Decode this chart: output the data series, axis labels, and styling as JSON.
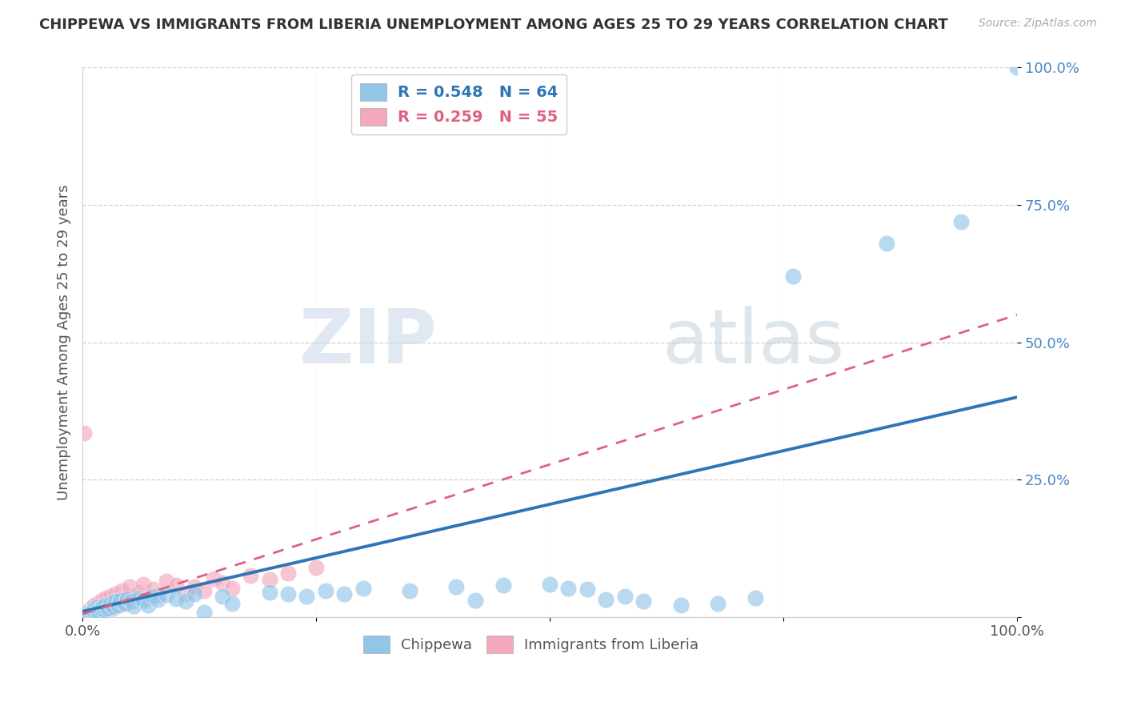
{
  "title": "CHIPPEWA VS IMMIGRANTS FROM LIBERIA UNEMPLOYMENT AMONG AGES 25 TO 29 YEARS CORRELATION CHART",
  "source": "Source: ZipAtlas.com",
  "ylabel": "Unemployment Among Ages 25 to 29 years",
  "xlim": [
    0.0,
    1.0
  ],
  "ylim": [
    0.0,
    1.0
  ],
  "xticks": [
    0.0,
    0.25,
    0.5,
    0.75,
    1.0
  ],
  "xticklabels": [
    "0.0%",
    "",
    "",
    "",
    "100.0%"
  ],
  "yticks": [
    0.0,
    0.25,
    0.5,
    0.75,
    1.0
  ],
  "yticklabels": [
    "",
    "25.0%",
    "50.0%",
    "75.0%",
    "100.0%"
  ],
  "legend1_label": "R = 0.548   N = 64",
  "legend2_label": "R = 0.259   N = 55",
  "chippewa_color": "#92C5E8",
  "liberia_color": "#F4A8BB",
  "chippewa_line_color": "#2E75B6",
  "liberia_line_color": "#E06080",
  "watermark_zip": "ZIP",
  "watermark_atlas": "atlas",
  "chippewa_line": [
    [
      0.0,
      0.01
    ],
    [
      1.0,
      0.4
    ]
  ],
  "liberia_line": [
    [
      0.0,
      0.005
    ],
    [
      1.0,
      0.55
    ]
  ],
  "chippewa_points": [
    [
      0.003,
      0.003
    ],
    [
      0.005,
      0.005
    ],
    [
      0.006,
      0.008
    ],
    [
      0.007,
      0.003
    ],
    [
      0.008,
      0.006
    ],
    [
      0.009,
      0.01
    ],
    [
      0.01,
      0.005
    ],
    [
      0.011,
      0.012
    ],
    [
      0.012,
      0.008
    ],
    [
      0.013,
      0.015
    ],
    [
      0.014,
      0.007
    ],
    [
      0.015,
      0.01
    ],
    [
      0.016,
      0.018
    ],
    [
      0.017,
      0.012
    ],
    [
      0.018,
      0.006
    ],
    [
      0.02,
      0.015
    ],
    [
      0.022,
      0.02
    ],
    [
      0.024,
      0.012
    ],
    [
      0.025,
      0.022
    ],
    [
      0.027,
      0.016
    ],
    [
      0.03,
      0.025
    ],
    [
      0.033,
      0.018
    ],
    [
      0.035,
      0.028
    ],
    [
      0.038,
      0.022
    ],
    [
      0.04,
      0.03
    ],
    [
      0.045,
      0.025
    ],
    [
      0.048,
      0.033
    ],
    [
      0.052,
      0.028
    ],
    [
      0.055,
      0.02
    ],
    [
      0.06,
      0.035
    ],
    [
      0.065,
      0.03
    ],
    [
      0.07,
      0.022
    ],
    [
      0.075,
      0.038
    ],
    [
      0.08,
      0.032
    ],
    [
      0.09,
      0.04
    ],
    [
      0.1,
      0.033
    ],
    [
      0.11,
      0.028
    ],
    [
      0.12,
      0.042
    ],
    [
      0.13,
      0.008
    ],
    [
      0.15,
      0.038
    ],
    [
      0.16,
      0.025
    ],
    [
      0.2,
      0.045
    ],
    [
      0.22,
      0.042
    ],
    [
      0.24,
      0.038
    ],
    [
      0.26,
      0.048
    ],
    [
      0.28,
      0.042
    ],
    [
      0.3,
      0.052
    ],
    [
      0.35,
      0.048
    ],
    [
      0.4,
      0.055
    ],
    [
      0.42,
      0.03
    ],
    [
      0.45,
      0.058
    ],
    [
      0.5,
      0.06
    ],
    [
      0.52,
      0.052
    ],
    [
      0.54,
      0.05
    ],
    [
      0.56,
      0.032
    ],
    [
      0.58,
      0.038
    ],
    [
      0.6,
      0.028
    ],
    [
      0.64,
      0.022
    ],
    [
      0.68,
      0.025
    ],
    [
      0.72,
      0.035
    ],
    [
      0.76,
      0.62
    ],
    [
      0.86,
      0.68
    ],
    [
      0.94,
      0.72
    ],
    [
      1.0,
      1.0
    ]
  ],
  "liberia_points": [
    [
      0.002,
      0.335
    ],
    [
      0.003,
      0.003
    ],
    [
      0.004,
      0.006
    ],
    [
      0.005,
      0.01
    ],
    [
      0.006,
      0.004
    ],
    [
      0.007,
      0.012
    ],
    [
      0.008,
      0.008
    ],
    [
      0.009,
      0.015
    ],
    [
      0.01,
      0.005
    ],
    [
      0.011,
      0.018
    ],
    [
      0.012,
      0.01
    ],
    [
      0.013,
      0.022
    ],
    [
      0.014,
      0.007
    ],
    [
      0.015,
      0.015
    ],
    [
      0.016,
      0.025
    ],
    [
      0.017,
      0.012
    ],
    [
      0.018,
      0.02
    ],
    [
      0.019,
      0.008
    ],
    [
      0.02,
      0.028
    ],
    [
      0.021,
      0.015
    ],
    [
      0.022,
      0.032
    ],
    [
      0.023,
      0.01
    ],
    [
      0.024,
      0.025
    ],
    [
      0.025,
      0.018
    ],
    [
      0.026,
      0.035
    ],
    [
      0.027,
      0.012
    ],
    [
      0.028,
      0.022
    ],
    [
      0.03,
      0.038
    ],
    [
      0.032,
      0.015
    ],
    [
      0.033,
      0.028
    ],
    [
      0.035,
      0.042
    ],
    [
      0.037,
      0.02
    ],
    [
      0.04,
      0.032
    ],
    [
      0.042,
      0.048
    ],
    [
      0.045,
      0.025
    ],
    [
      0.048,
      0.038
    ],
    [
      0.05,
      0.055
    ],
    [
      0.055,
      0.03
    ],
    [
      0.06,
      0.045
    ],
    [
      0.065,
      0.06
    ],
    [
      0.07,
      0.035
    ],
    [
      0.075,
      0.05
    ],
    [
      0.08,
      0.04
    ],
    [
      0.09,
      0.065
    ],
    [
      0.1,
      0.058
    ],
    [
      0.11,
      0.042
    ],
    [
      0.12,
      0.055
    ],
    [
      0.13,
      0.048
    ],
    [
      0.14,
      0.07
    ],
    [
      0.15,
      0.062
    ],
    [
      0.16,
      0.052
    ],
    [
      0.18,
      0.075
    ],
    [
      0.2,
      0.068
    ],
    [
      0.22,
      0.08
    ],
    [
      0.25,
      0.09
    ]
  ]
}
